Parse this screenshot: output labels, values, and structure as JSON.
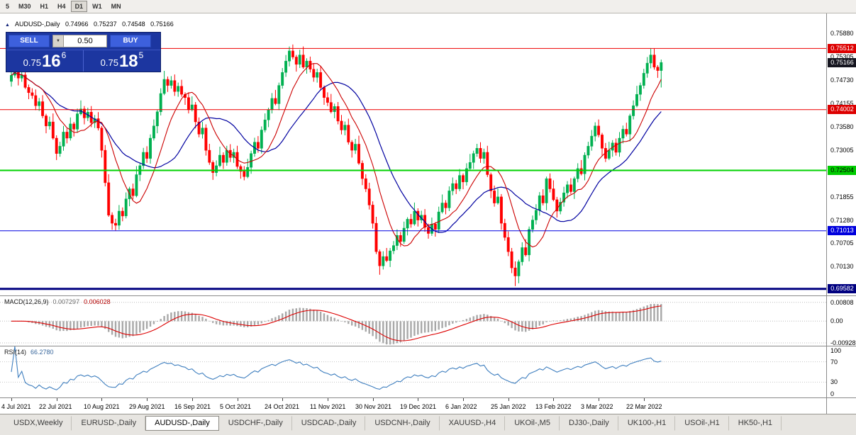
{
  "window": {
    "timeframes": [
      "5",
      "M30",
      "H1",
      "H4",
      "D1",
      "W1",
      "MN"
    ],
    "active_timeframe": "D1"
  },
  "chart": {
    "title": {
      "symbol_period": "AUDUSD-,Daily",
      "open": "0.74966",
      "high": "0.75237",
      "low": "0.74548",
      "close": "0.75166"
    },
    "trade_panel": {
      "sell_label": "SELL",
      "buy_label": "BUY",
      "volume": "0.50",
      "bid": {
        "big": "0.75",
        "pips": "16",
        "point": "6"
      },
      "ask": {
        "big": "0.75",
        "pips": "18",
        "point": "5"
      }
    },
    "price_range": [
      0.6942,
      0.762
    ],
    "price_axis": {
      "ticks": [
        "0.75880",
        "0.75305",
        "0.74730",
        "0.74155",
        "0.73580",
        "0.73005",
        "0.72430",
        "0.71855",
        "0.71280",
        "0.70705",
        "0.70130"
      ],
      "badges": [
        {
          "text": "0.75512",
          "bg": "#dd0000",
          "fg": "#ffffff",
          "price": 0.75512,
          "current": false
        },
        {
          "text": "0.75166",
          "bg": "#15151f",
          "fg": "#ffffff",
          "price": 0.75166,
          "current": true
        },
        {
          "text": "0.74002",
          "bg": "#dd0000",
          "fg": "#ffffff",
          "price": 0.74002,
          "current": false
        },
        {
          "text": "0.72504",
          "bg": "#00cc00",
          "fg": "#000000",
          "price": 0.72504,
          "current": false
        },
        {
          "text": "0.71013",
          "bg": "#0000dd",
          "fg": "#ffffff",
          "price": 0.71013,
          "current": false
        },
        {
          "text": "0.69582",
          "bg": "#000080",
          "fg": "#ffffff",
          "price": 0.69582,
          "current": false
        }
      ]
    },
    "hlines": [
      {
        "price": 0.75512,
        "color": "#ee0000",
        "w": 1
      },
      {
        "price": 0.74002,
        "color": "#ee0000",
        "w": 1
      },
      {
        "price": 0.72504,
        "color": "#00d200",
        "w": 2
      },
      {
        "price": 0.71013,
        "color": "#0000e0",
        "w": 1
      },
      {
        "price": 0.69582,
        "color": "#000080",
        "w": 3
      }
    ],
    "dates": [
      {
        "label": "4 Jul 2021",
        "bar": 0
      },
      {
        "label": "22 Jul 2021",
        "bar": 13
      },
      {
        "label": "10 Aug 2021",
        "bar": 26
      },
      {
        "label": "29 Aug 2021",
        "bar": 39
      },
      {
        "label": "16 Sep 2021",
        "bar": 52
      },
      {
        "label": "5 Oct 2021",
        "bar": 65
      },
      {
        "label": "24 Oct 2021",
        "bar": 78
      },
      {
        "label": "11 Nov 2021",
        "bar": 91
      },
      {
        "label": "30 Nov 2021",
        "bar": 104
      },
      {
        "label": "19 Dec 2021",
        "bar": 117
      },
      {
        "label": "6 Jan 2022",
        "bar": 130
      },
      {
        "label": "25 Jan 2022",
        "bar": 143
      },
      {
        "label": "13 Feb 2022",
        "bar": 156
      },
      {
        "label": "3 Mar 2022",
        "bar": 169
      },
      {
        "label": "22 Mar 2022",
        "bar": 182
      }
    ],
    "colors": {
      "up": "#00b050",
      "down": "#ff0000",
      "ma_fast": "#cc0000",
      "ma_slow": "#0000a0"
    },
    "ma_periods": {
      "fast": 10,
      "slow": 21
    }
  },
  "chart_data": {
    "type": "candlestick",
    "symbol": "AUDUSD-",
    "period": "Daily",
    "first_open": 0.747,
    "closes": [
      0.7485,
      0.7498,
      0.7478,
      0.7486,
      0.7455,
      0.7442,
      0.7435,
      0.741,
      0.742,
      0.7385,
      0.736,
      0.737,
      0.733,
      0.7292,
      0.731,
      0.7345,
      0.733,
      0.7365,
      0.7352,
      0.739,
      0.7402,
      0.738,
      0.7394,
      0.7368,
      0.7378,
      0.7355,
      0.73,
      0.722,
      0.714,
      0.712,
      0.7115,
      0.715,
      0.7138,
      0.718,
      0.7205,
      0.7188,
      0.724,
      0.7262,
      0.7295,
      0.728,
      0.733,
      0.736,
      0.7395,
      0.744,
      0.7475,
      0.746,
      0.7472,
      0.7445,
      0.7458,
      0.7438,
      0.743,
      0.74,
      0.7412,
      0.737,
      0.734,
      0.7355,
      0.73,
      0.727,
      0.7245,
      0.7262,
      0.7288,
      0.727,
      0.73,
      0.7282,
      0.7295,
      0.726,
      0.7248,
      0.7235,
      0.7258,
      0.7292,
      0.732,
      0.7305,
      0.735,
      0.7375,
      0.74,
      0.7428,
      0.7415,
      0.746,
      0.7492,
      0.752,
      0.7545,
      0.753,
      0.7512,
      0.7535,
      0.7505,
      0.752,
      0.75,
      0.748,
      0.7492,
      0.7455,
      0.743,
      0.7418,
      0.7395,
      0.7408,
      0.7372,
      0.735,
      0.7362,
      0.732,
      0.73,
      0.7315,
      0.7268,
      0.723,
      0.7205,
      0.7165,
      0.712,
      0.705,
      0.7015,
      0.7038,
      0.7028,
      0.7052,
      0.7065,
      0.709,
      0.7075,
      0.7108,
      0.713,
      0.7118,
      0.715,
      0.7128,
      0.714,
      0.711,
      0.7095,
      0.7118,
      0.7105,
      0.7148,
      0.717,
      0.7158,
      0.72,
      0.7218,
      0.7205,
      0.7238,
      0.7222,
      0.7255,
      0.727,
      0.7292,
      0.7305,
      0.728,
      0.7295,
      0.724,
      0.72,
      0.717,
      0.7185,
      0.712,
      0.7085,
      0.705,
      0.701,
      0.699,
      0.7025,
      0.706,
      0.7042,
      0.7105,
      0.7128,
      0.7152,
      0.7188,
      0.717,
      0.723,
      0.7205,
      0.7178,
      0.715,
      0.7172,
      0.7195,
      0.7215,
      0.7198,
      0.723,
      0.7255,
      0.7242,
      0.7288,
      0.731,
      0.7335,
      0.736,
      0.7338,
      0.7305,
      0.728,
      0.73,
      0.7318,
      0.7295,
      0.733,
      0.7352,
      0.734,
      0.7385,
      0.741,
      0.7438,
      0.746,
      0.749,
      0.7515,
      0.7535,
      0.7505,
      0.74966,
      0.75166
    ],
    "wick_up": [
      0.0009,
      0.0016,
      0.0005,
      0.0013,
      0.0021,
      0.0007,
      0.0011,
      0.0015
    ],
    "wick_dn": [
      0.0013,
      0.0006,
      0.0018,
      0.0009,
      0.0004,
      0.0016,
      0.0008,
      0.0011
    ],
    "overrides": {
      "30": {
        "l": 0.7102
      },
      "80": {
        "h": 0.7556
      },
      "106": {
        "l": 0.6993
      },
      "145": {
        "l": 0.6965
      },
      "184": {
        "h": 0.7552
      },
      "187": {
        "o": 0.74966,
        "h": 0.75237,
        "l": 0.74548,
        "c": 0.75166
      }
    },
    "last_candle": {
      "open": 0.74966,
      "high": 0.75237,
      "low": 0.74548,
      "close": 0.75166
    }
  },
  "indicators": {
    "macd": {
      "label": "MACD(12,26,9)",
      "value_main": "0.007297",
      "value_signal": "0.006028",
      "axis_labels": [
        "0.00808",
        "0.00",
        "-0.00928"
      ],
      "range": [
        -0.0105,
        0.0107
      ],
      "colors": {
        "hist": "#a8a8a8",
        "signal": "#dd0000"
      }
    },
    "rsi": {
      "label": "RSI(14)",
      "value": "66.2780",
      "axis_labels": [
        "100",
        "70",
        "30",
        "0"
      ],
      "levels": [
        70,
        30
      ],
      "color": "#3f7fbf"
    }
  },
  "tabs": {
    "items": [
      "USDX,Weekly",
      "EURUSD-,Daily",
      "AUDUSD-,Daily",
      "USDCHF-,Daily",
      "USDCAD-,Daily",
      "USDCNH-,Daily",
      "XAUUSD-,H4",
      "UKOil-,M5",
      "DJ30-,Daily",
      "UK100-,H1",
      "USOil-,H1",
      "HK50-,H1"
    ],
    "active": "AUDUSD-,Daily"
  }
}
